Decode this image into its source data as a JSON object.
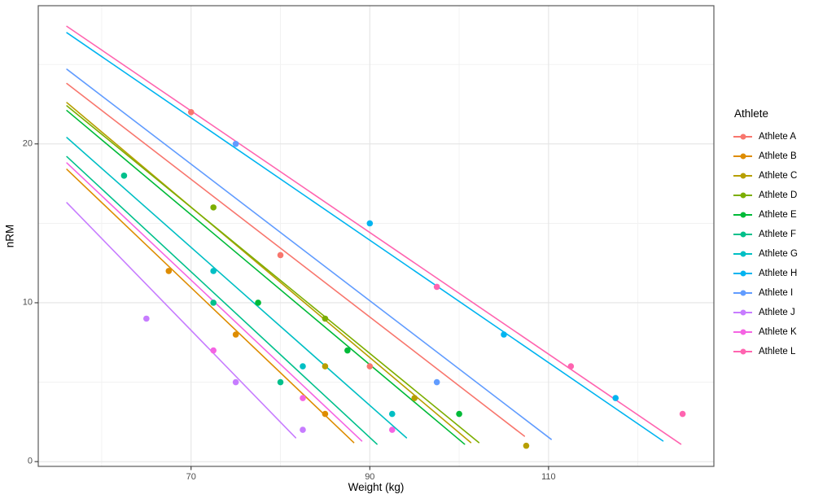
{
  "chart_data": {
    "type": "scatter",
    "title": "",
    "xlabel": "Weight (kg)",
    "ylabel": "nRM",
    "legend_title": "Athlete",
    "legend_position": "right",
    "grid": true,
    "xlim": [
      52.9,
      128.5
    ],
    "ylim": [
      -0.3,
      28.7
    ],
    "x_ticks": [
      70,
      90,
      110
    ],
    "y_ticks": [
      0,
      10,
      20
    ],
    "x_minor_ticks": [
      60,
      80,
      100,
      120
    ],
    "y_minor_ticks": [
      5,
      15,
      25
    ],
    "series": [
      {
        "name": "Athlete A",
        "color": "#F8766D",
        "points": [
          [
            70,
            22
          ],
          [
            80,
            13
          ],
          [
            90,
            6
          ]
        ],
        "trend_line": {
          "x1": 56.1,
          "y1": 23.8,
          "x2": 107.3,
          "y2": 1.6
        }
      },
      {
        "name": "Athlete B",
        "color": "#DE8C00",
        "points": [
          [
            67.5,
            12
          ],
          [
            75,
            8
          ],
          [
            85,
            3
          ]
        ],
        "trend_line": {
          "x1": 56.1,
          "y1": 18.4,
          "x2": 88.2,
          "y2": 1.2
        }
      },
      {
        "name": "Athlete C",
        "color": "#B79F00",
        "points": [
          [
            85,
            6
          ],
          [
            95,
            4
          ],
          [
            107.5,
            1
          ]
        ],
        "trend_line": {
          "x1": 56.1,
          "y1": 22.6,
          "x2": 101.3,
          "y2": 1.2
        }
      },
      {
        "name": "Athlete D",
        "color": "#7CAE00",
        "points": [
          [
            72.5,
            16
          ],
          [
            85,
            9
          ]
        ],
        "trend_line": {
          "x1": 56.1,
          "y1": 22.4,
          "x2": 102.2,
          "y2": 1.2
        }
      },
      {
        "name": "Athlete E",
        "color": "#00BA38",
        "points": [
          [
            77.5,
            10
          ],
          [
            87.5,
            7
          ],
          [
            100,
            3
          ]
        ],
        "trend_line": {
          "x1": 56.1,
          "y1": 22.1,
          "x2": 100.6,
          "y2": 1.1
        }
      },
      {
        "name": "Athlete F",
        "color": "#00C08B",
        "points": [
          [
            62.5,
            18
          ],
          [
            72.5,
            10
          ],
          [
            80,
            5
          ]
        ],
        "trend_line": {
          "x1": 56.1,
          "y1": 19.2,
          "x2": 90.8,
          "y2": 1.1
        }
      },
      {
        "name": "Athlete G",
        "color": "#00BFC4",
        "points": [
          [
            72.5,
            12
          ],
          [
            82.5,
            6
          ],
          [
            92.5,
            3
          ]
        ],
        "trend_line": {
          "x1": 56.1,
          "y1": 20.4,
          "x2": 94.1,
          "y2": 1.5
        }
      },
      {
        "name": "Athlete H",
        "color": "#00B4F0",
        "points": [
          [
            90,
            15
          ],
          [
            105,
            8
          ],
          [
            117.5,
            4
          ]
        ],
        "trend_line": {
          "x1": 56.1,
          "y1": 27.0,
          "x2": 122.8,
          "y2": 1.3
        }
      },
      {
        "name": "Athlete I",
        "color": "#619CFF",
        "points": [
          [
            75,
            20
          ],
          [
            97.5,
            5
          ]
        ],
        "trend_line": {
          "x1": 56.1,
          "y1": 24.7,
          "x2": 110.3,
          "y2": 1.4
        }
      },
      {
        "name": "Athlete J",
        "color": "#C77CFF",
        "points": [
          [
            65,
            9
          ],
          [
            75,
            5
          ],
          [
            82.5,
            2
          ]
        ],
        "trend_line": {
          "x1": 56.1,
          "y1": 16.3,
          "x2": 81.7,
          "y2": 1.5
        }
      },
      {
        "name": "Athlete K",
        "color": "#F564E3",
        "points": [
          [
            72.5,
            7
          ],
          [
            82.5,
            4
          ],
          [
            92.5,
            2
          ]
        ],
        "trend_line": {
          "x1": 56.1,
          "y1": 18.8,
          "x2": 89.1,
          "y2": 1.3
        }
      },
      {
        "name": "Athlete L",
        "color": "#FF64B0",
        "points": [
          [
            97.5,
            11
          ],
          [
            112.5,
            6
          ],
          [
            125,
            3
          ]
        ],
        "trend_line": {
          "x1": 56.1,
          "y1": 27.4,
          "x2": 124.8,
          "y2": 1.1
        }
      }
    ]
  },
  "style_colors": {
    "panel_background": "#ffffff",
    "panel_border": "#595959",
    "grid_major": "#e4e4e4",
    "grid_minor": "#f1f1f1",
    "tick_mark": "#333333",
    "tick_label": "#4d4d4d"
  }
}
